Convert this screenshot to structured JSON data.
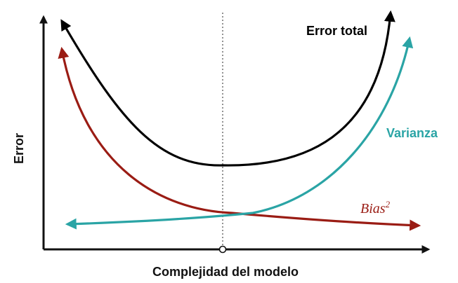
{
  "chart_data": {
    "type": "line",
    "xlabel": "Complejidad del modelo",
    "ylabel": "Error",
    "grid": false,
    "axes_ticks": false,
    "optimum_marker": true,
    "series": [
      {
        "name": "Error total",
        "color": "#000000",
        "label_color": "#000000",
        "label_style": "bold"
      },
      {
        "name": "Varianza",
        "color": "#2aa4a5",
        "label_color": "#2aa4a5",
        "label_style": "bold"
      },
      {
        "name": "Bias",
        "name_superscript": "2",
        "color": "#9a1c14",
        "label_color": "#9a1c14",
        "label_style": "italic-serif"
      }
    ]
  }
}
